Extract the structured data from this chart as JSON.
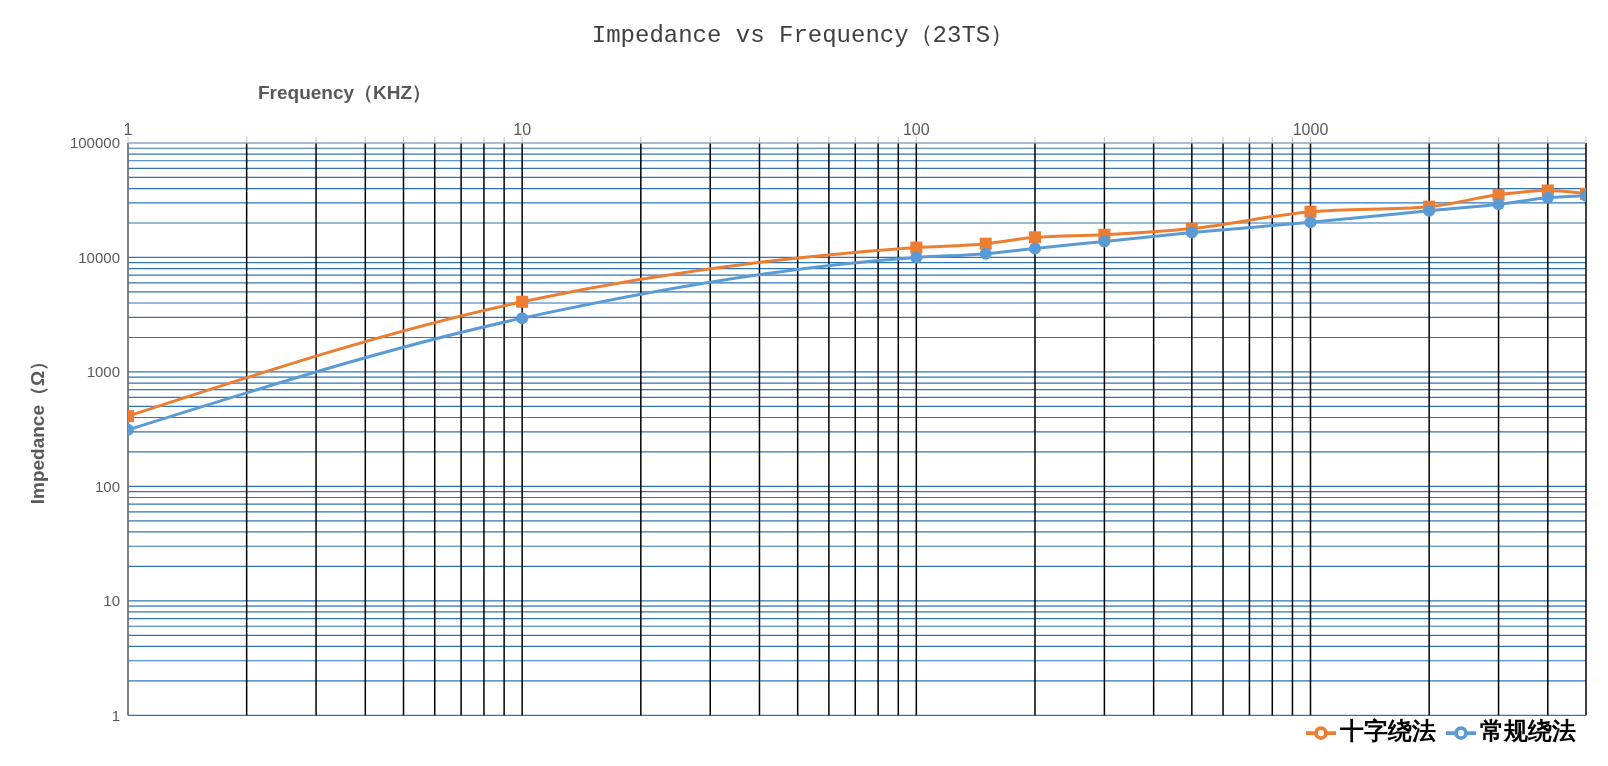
{
  "chart_data": {
    "type": "line",
    "title": "Impedance vs Frequency（23TS）",
    "xlabel": "Frequency（KHZ）",
    "ylabel": "Impedance（Ω）",
    "x": [
      1,
      10,
      100,
      150,
      200,
      300,
      500,
      1000,
      2000,
      3000,
      4000,
      5000
    ],
    "series": [
      {
        "name": "常规绕法",
        "color": "#5b9bd5",
        "marker": "circle",
        "values": [
          312,
          2950,
          10000,
          10800,
          12000,
          13800,
          16500,
          20300,
          25600,
          29200,
          33200,
          34600
        ]
      },
      {
        "name": "十字绕法",
        "color": "#ed7d31",
        "marker": "square",
        "values": [
          411,
          4100,
          12200,
          13200,
          15000,
          15800,
          17900,
          25100,
          27800,
          35300,
          38500,
          36000
        ]
      }
    ],
    "log": "xy",
    "xlim": [
      1,
      5000
    ],
    "ylim": [
      1,
      100000
    ],
    "xticks": [
      1,
      {
        "value": 2,
        "label": null
      },
      {
        "value": 3,
        "label": null
      },
      {
        "value": 4,
        "label": null
      },
      {
        "value": 5,
        "label": null
      },
      {
        "value": 6,
        "label": null
      },
      {
        "value": 7,
        "label": null
      },
      {
        "value": 8,
        "label": null
      },
      {
        "value": 9,
        "label": null
      },
      10,
      {
        "value": 20,
        "label": null
      },
      {
        "value": 30,
        "label": null
      },
      {
        "value": 40,
        "label": null
      },
      {
        "value": 50,
        "label": null
      },
      {
        "value": 60,
        "label": null
      },
      {
        "value": 70,
        "label": null
      },
      {
        "value": 80,
        "label": null
      },
      {
        "value": 90,
        "label": null
      },
      100,
      {
        "value": 200,
        "label": null
      },
      {
        "value": 300,
        "label": null
      },
      {
        "value": 400,
        "label": null
      },
      {
        "value": 500,
        "label": null
      },
      {
        "value": 600,
        "label": null
      },
      {
        "value": 700,
        "label": null
      },
      {
        "value": 800,
        "label": null
      },
      {
        "value": 900,
        "label": null
      },
      1000,
      {
        "value": 2000,
        "label": null
      },
      {
        "value": 3000,
        "label": null
      },
      {
        "value": 4000,
        "label": null
      },
      {
        "value": 5000,
        "label": null
      }
    ],
    "yticks": [
      1,
      {
        "value": 2,
        "label": null
      },
      {
        "value": 3,
        "label": null
      },
      {
        "value": 4,
        "label": null
      },
      {
        "value": 5,
        "label": null
      },
      {
        "value": 6,
        "label": null
      },
      {
        "value": 7,
        "label": null
      },
      {
        "value": 8,
        "label": null
      },
      {
        "value": 9,
        "label": null
      },
      10,
      {
        "value": 20,
        "label": null
      },
      {
        "value": 30,
        "label": null
      },
      {
        "value": 40,
        "label": null
      },
      {
        "value": 50,
        "label": null
      },
      {
        "value": 60,
        "label": null
      },
      {
        "value": 70,
        "label": null
      },
      {
        "value": 80,
        "label": null
      },
      {
        "value": 90,
        "label": null
      },
      100,
      {
        "value": 200,
        "label": null
      },
      {
        "value": 300,
        "label": null
      },
      {
        "value": 400,
        "label": null
      },
      {
        "value": 500,
        "label": null
      },
      {
        "value": 600,
        "label": null
      },
      {
        "value": 700,
        "label": null
      },
      {
        "value": 800,
        "label": null
      },
      {
        "value": 900,
        "label": null
      },
      1000,
      {
        "value": 2000,
        "label": null
      },
      {
        "value": 3000,
        "label": null
      },
      {
        "value": 4000,
        "label": null
      },
      {
        "value": 5000,
        "label": null
      },
      {
        "value": 6000,
        "label": null
      },
      {
        "value": 7000,
        "label": null
      },
      {
        "value": 8000,
        "label": null
      },
      {
        "value": 9000,
        "label": null
      },
      10000,
      {
        "value": 20000,
        "label": null
      },
      {
        "value": 30000,
        "label": null
      },
      {
        "value": 40000,
        "label": null
      },
      {
        "value": 50000,
        "label": null
      },
      {
        "value": 60000,
        "label": null
      },
      {
        "value": 70000,
        "label": null
      },
      {
        "value": 80000,
        "label": null
      },
      {
        "value": 90000,
        "label": null
      },
      100000
    ],
    "grid": true,
    "legend": "bottom right"
  }
}
